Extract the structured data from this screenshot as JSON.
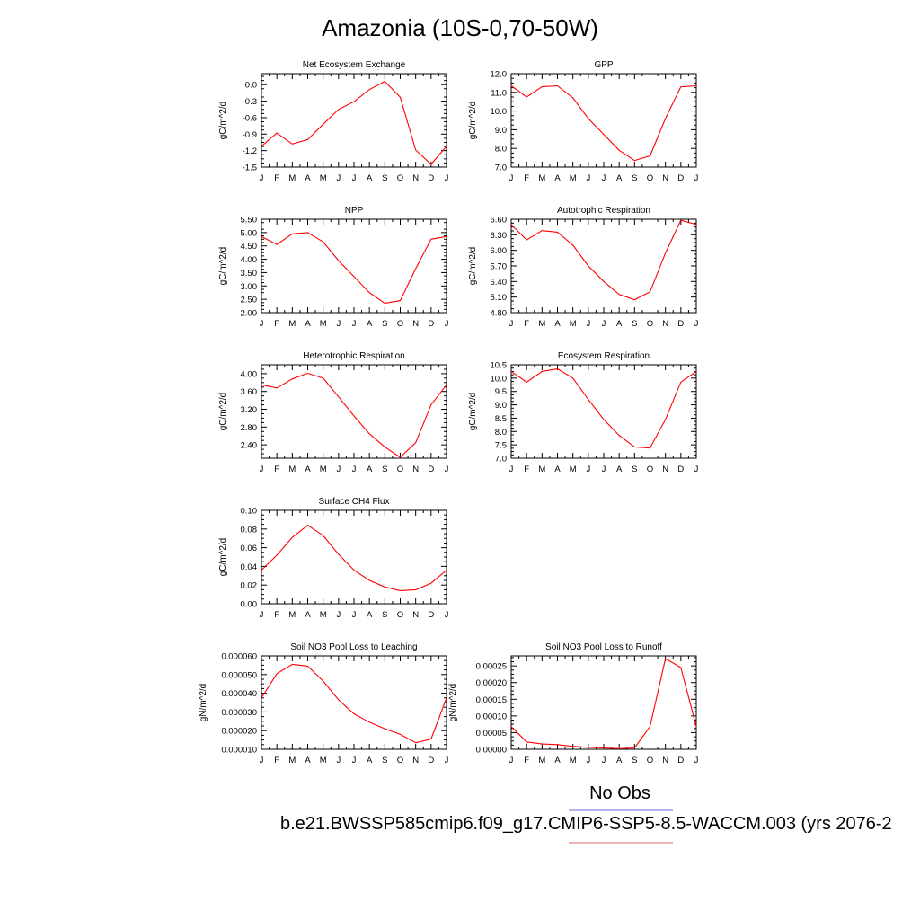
{
  "page": {
    "title": "Amazonia (10S-0,70-50W)",
    "legend_title": "No Obs",
    "footer": "b.e21.BWSSP585cmip6.f09_g17.CMIP6-SSP5-8.5-WACCM.003 (yrs 2076-2",
    "legend_line_colors": [
      "#8888ee",
      "#ee8888"
    ],
    "series_color": "#ff0000"
  },
  "chart_data": [
    {
      "type": "line",
      "title": "Net Ecosystem Exchange",
      "ylabel": "gC/m^2/d",
      "categories": [
        "J",
        "F",
        "M",
        "A",
        "M",
        "J",
        "J",
        "A",
        "S",
        "O",
        "N",
        "D",
        "J"
      ],
      "ylim": [
        -1.5,
        0.2
      ],
      "yticks": [
        -1.5,
        -1.2,
        -0.9,
        -0.6,
        -0.3,
        0.0
      ],
      "ytick_labels": [
        "-1.5",
        "-1.2",
        "-0.9",
        "-0.6",
        "-0.3",
        "0.0"
      ],
      "values": [
        -1.12,
        -0.88,
        -1.08,
        -1.0,
        -0.72,
        -0.45,
        -0.31,
        -0.09,
        0.06,
        -0.23,
        -1.19,
        -1.45,
        -1.12
      ]
    },
    {
      "type": "line",
      "title": "GPP",
      "ylabel": "gC/m^2/d",
      "categories": [
        "J",
        "F",
        "M",
        "A",
        "M",
        "J",
        "J",
        "A",
        "S",
        "O",
        "N",
        "D",
        "J"
      ],
      "ylim": [
        7.0,
        12.0
      ],
      "yticks": [
        7,
        8,
        9,
        10,
        11,
        12
      ],
      "ytick_labels": [
        "7.0",
        "8.0",
        "9.0",
        "10.0",
        "11.0",
        "12.0"
      ],
      "values": [
        11.35,
        10.75,
        11.3,
        11.35,
        10.7,
        9.6,
        8.75,
        7.9,
        7.35,
        7.6,
        9.6,
        11.3,
        11.35
      ]
    },
    {
      "type": "line",
      "title": "NPP",
      "ylabel": "gC/m^2/d",
      "categories": [
        "J",
        "F",
        "M",
        "A",
        "M",
        "J",
        "J",
        "A",
        "S",
        "O",
        "N",
        "D",
        "J"
      ],
      "ylim": [
        2.0,
        5.5
      ],
      "yticks": [
        2.0,
        2.5,
        3.0,
        3.5,
        4.0,
        4.5,
        5.0,
        5.5
      ],
      "ytick_labels": [
        "2.00",
        "2.50",
        "3.00",
        "3.50",
        "4.00",
        "4.50",
        "5.00",
        "5.50"
      ],
      "values": [
        4.85,
        4.55,
        4.95,
        5.0,
        4.65,
        3.95,
        3.35,
        2.75,
        2.35,
        2.45,
        3.65,
        4.75,
        4.85
      ]
    },
    {
      "type": "line",
      "title": "Autotrophic Respiration",
      "ylabel": "gC/m^2/d",
      "categories": [
        "J",
        "F",
        "M",
        "A",
        "M",
        "J",
        "J",
        "A",
        "S",
        "O",
        "N",
        "D",
        "J"
      ],
      "ylim": [
        4.8,
        6.6
      ],
      "yticks": [
        4.8,
        5.1,
        5.4,
        5.7,
        6.0,
        6.3,
        6.6
      ],
      "ytick_labels": [
        "4.80",
        "5.10",
        "5.40",
        "5.70",
        "6.00",
        "6.30",
        "6.60"
      ],
      "values": [
        6.5,
        6.2,
        6.38,
        6.35,
        6.1,
        5.7,
        5.4,
        5.15,
        5.05,
        5.2,
        5.95,
        6.58,
        6.5
      ]
    },
    {
      "type": "line",
      "title": "Heterotrophic Respiration",
      "ylabel": "gC/m^2/d",
      "categories": [
        "J",
        "F",
        "M",
        "A",
        "M",
        "J",
        "J",
        "A",
        "S",
        "O",
        "N",
        "D",
        "J"
      ],
      "ylim": [
        2.1,
        4.2
      ],
      "yticks": [
        2.4,
        2.8,
        3.2,
        3.6,
        4.0
      ],
      "ytick_labels": [
        "2.40",
        "2.80",
        "3.20",
        "3.60",
        "4.00"
      ],
      "values": [
        3.75,
        3.68,
        3.88,
        4.01,
        3.9,
        3.48,
        3.05,
        2.65,
        2.35,
        2.12,
        2.45,
        3.3,
        3.75
      ]
    },
    {
      "type": "line",
      "title": "Ecosystem Respiration",
      "ylabel": "gC/m^2/d",
      "categories": [
        "J",
        "F",
        "M",
        "A",
        "M",
        "J",
        "J",
        "A",
        "S",
        "O",
        "N",
        "D",
        "J"
      ],
      "ylim": [
        7.0,
        10.5
      ],
      "yticks": [
        7.0,
        7.5,
        8.0,
        8.5,
        9.0,
        9.5,
        10.0,
        10.5
      ],
      "ytick_labels": [
        "7.0",
        "7.5",
        "8.0",
        "8.5",
        "9.0",
        "9.5",
        "10.0",
        "10.5"
      ],
      "values": [
        10.25,
        9.85,
        10.25,
        10.35,
        10.0,
        9.2,
        8.45,
        7.85,
        7.42,
        7.38,
        8.45,
        9.85,
        10.25
      ]
    },
    {
      "type": "line",
      "title": "Surface CH4 Flux",
      "ylabel": "gC/m^2/d",
      "categories": [
        "J",
        "F",
        "M",
        "A",
        "M",
        "J",
        "J",
        "A",
        "S",
        "O",
        "N",
        "D",
        "J"
      ],
      "ylim": [
        0.0,
        0.1
      ],
      "yticks": [
        0.0,
        0.02,
        0.04,
        0.06,
        0.08,
        0.1
      ],
      "ytick_labels": [
        "0.00",
        "0.02",
        "0.04",
        "0.06",
        "0.08",
        "0.10"
      ],
      "values": [
        0.036,
        0.052,
        0.071,
        0.084,
        0.073,
        0.053,
        0.036,
        0.025,
        0.018,
        0.014,
        0.015,
        0.022,
        0.036
      ]
    },
    {
      "type": "line",
      "title": "Soil NO3 Pool Loss to Leaching",
      "ylabel": "gN/m^2/d",
      "categories": [
        "J",
        "F",
        "M",
        "A",
        "M",
        "J",
        "J",
        "A",
        "S",
        "O",
        "N",
        "D",
        "J"
      ],
      "ylim": [
        1e-05,
        6e-05
      ],
      "yticks": [
        1e-05,
        2e-05,
        3e-05,
        4e-05,
        5e-05,
        6e-05
      ],
      "ytick_labels": [
        "0.000010",
        "0.000020",
        "0.000030",
        "0.000040",
        "0.000050",
        "0.000060"
      ],
      "values": [
        3.75e-05,
        5.05e-05,
        5.55e-05,
        5.45e-05,
        4.65e-05,
        3.65e-05,
        2.9e-05,
        2.45e-05,
        2.1e-05,
        1.8e-05,
        1.35e-05,
        1.55e-05,
        3.75e-05
      ]
    },
    {
      "type": "line",
      "title": "Soil NO3 Pool Loss to Runoff",
      "ylabel": "gN/m^2/d",
      "categories": [
        "J",
        "F",
        "M",
        "A",
        "M",
        "J",
        "J",
        "A",
        "S",
        "O",
        "N",
        "D",
        "J"
      ],
      "ylim": [
        0.0,
        0.00028
      ],
      "yticks": [
        0.0,
        5e-05,
        0.0001,
        0.00015,
        0.0002,
        0.00025
      ],
      "ytick_labels": [
        "0.00000",
        "0.00005",
        "0.00010",
        "0.00015",
        "0.00020",
        "0.00025"
      ],
      "values": [
        6.8e-05,
        2.2e-05,
        1.6e-05,
        1.4e-05,
        9e-06,
        6e-06,
        4e-06,
        2e-06,
        4e-06,
        6.8e-05,
        0.000272,
        0.000245,
        6.8e-05
      ]
    }
  ]
}
